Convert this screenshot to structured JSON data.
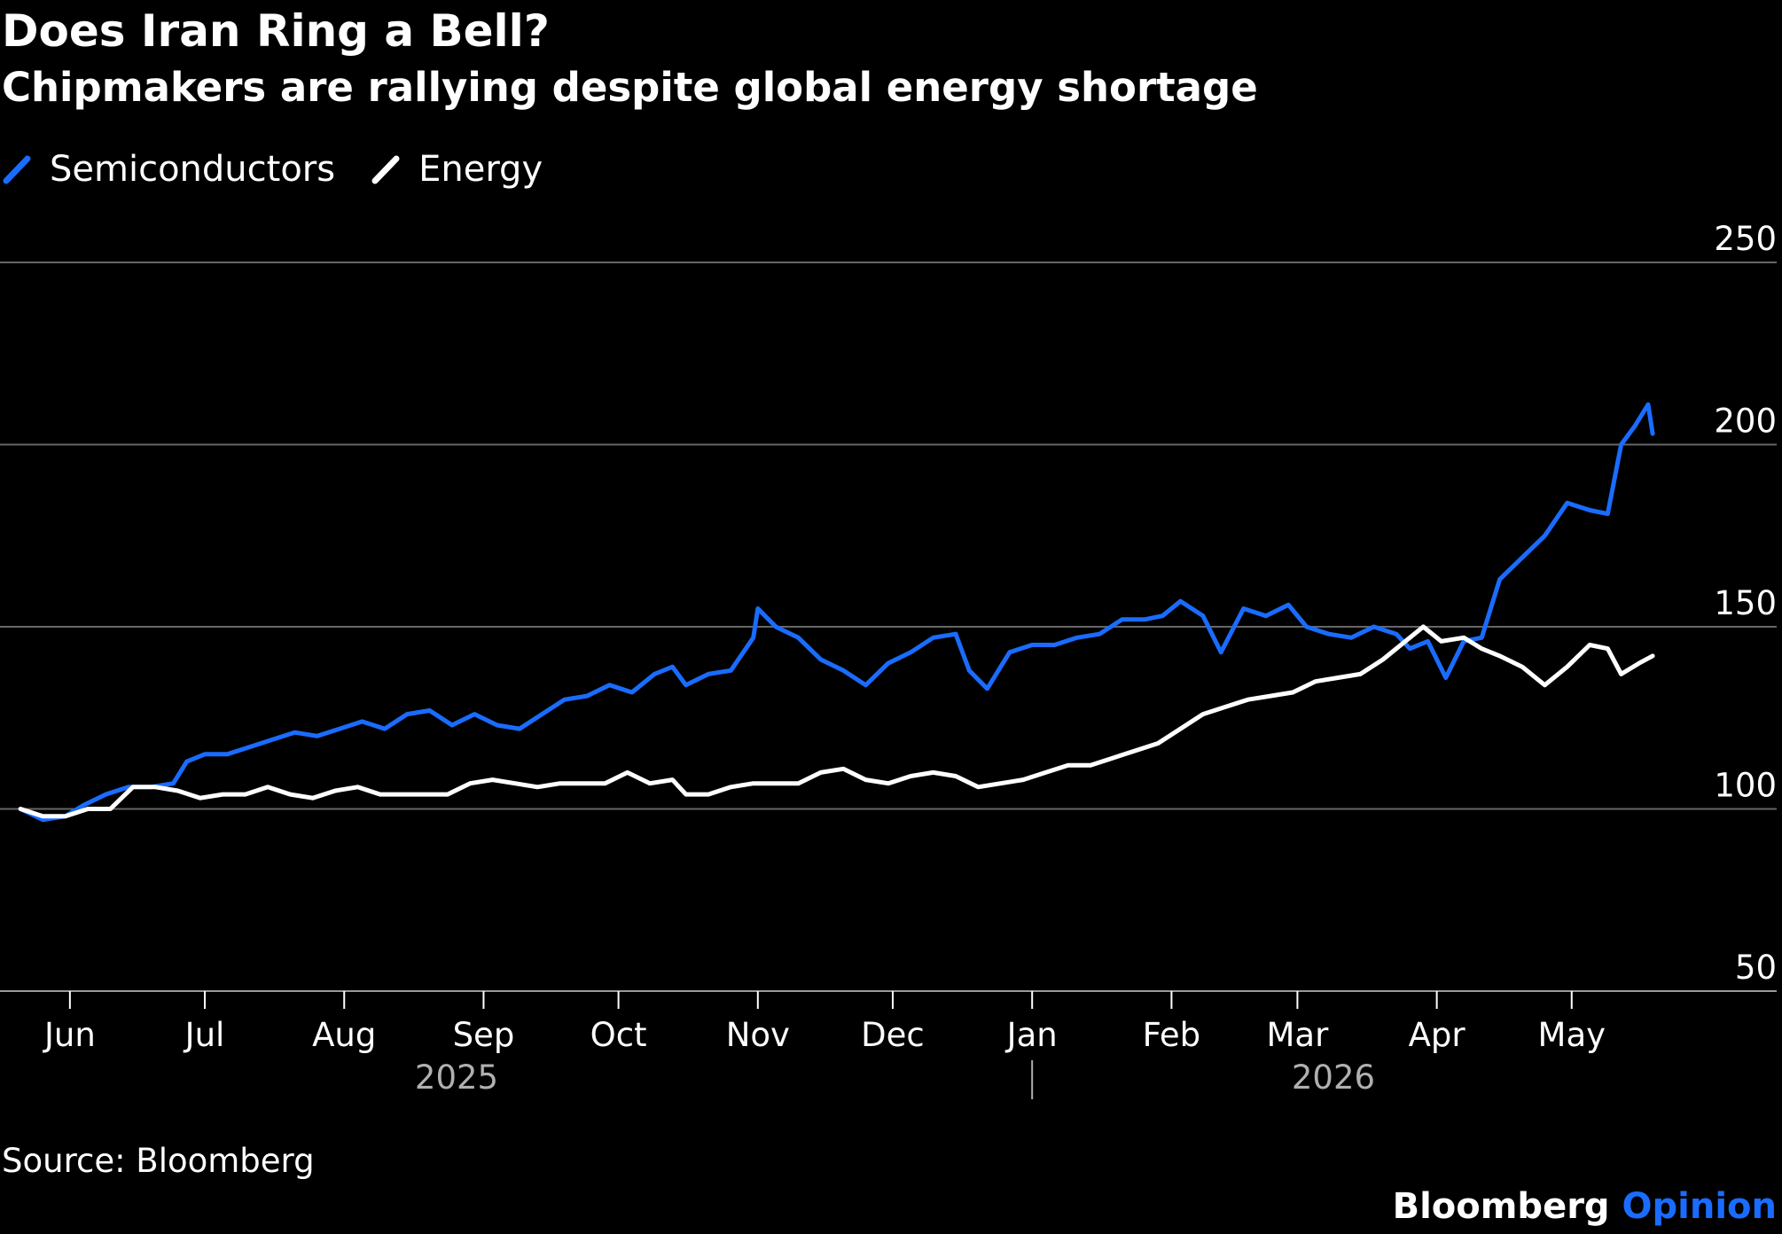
{
  "header": {
    "title": "Does Iran Ring a Bell?",
    "subtitle": "Chipmakers are rallying despite global energy shortage"
  },
  "footer": {
    "source": "Source: Bloomberg",
    "brand_1": "Bloomberg",
    "brand_2": "Opinion"
  },
  "colors": {
    "background": "#000000",
    "semiconductors": "#1a6cff",
    "energy": "#ffffff",
    "grid": "#666666",
    "year_label": "#b0b0b0"
  },
  "chart_data": {
    "type": "line",
    "title": "Does Iran Ring a Bell?",
    "subtitle": "Chipmakers are rallying despite global energy shortage",
    "legend_position": "top-left",
    "grid": true,
    "ylim": [
      50,
      250
    ],
    "yticks": [
      50,
      100,
      150,
      200,
      250
    ],
    "y_axis_side": "right",
    "xlim": [
      "2025-05-20",
      "2026-06-01"
    ],
    "x_ticks": [
      {
        "date": "2025-06-01",
        "label": "Jun"
      },
      {
        "date": "2025-07-01",
        "label": "Jul"
      },
      {
        "date": "2025-08-01",
        "label": "Aug"
      },
      {
        "date": "2025-09-01",
        "label": "Sep"
      },
      {
        "date": "2025-10-01",
        "label": "Oct"
      },
      {
        "date": "2025-11-01",
        "label": "Nov"
      },
      {
        "date": "2025-12-01",
        "label": "Dec"
      },
      {
        "date": "2026-01-01",
        "label": "Jan"
      },
      {
        "date": "2026-02-01",
        "label": "Feb"
      },
      {
        "date": "2026-03-01",
        "label": "Mar"
      },
      {
        "date": "2026-04-01",
        "label": "Apr"
      },
      {
        "date": "2026-05-01",
        "label": "May"
      }
    ],
    "year_labels": [
      {
        "date": "2025-08-26",
        "label": "2025"
      },
      {
        "date": "2026-03-09",
        "label": "2026"
      }
    ],
    "year_separator_date": "2026-01-01",
    "series": [
      {
        "name": "Semiconductors",
        "color": "#1a6cff",
        "points": [
          [
            "2025-05-21",
            100
          ],
          [
            "2025-05-26",
            97
          ],
          [
            "2025-05-31",
            98
          ],
          [
            "2025-06-04",
            101
          ],
          [
            "2025-06-09",
            104
          ],
          [
            "2025-06-14",
            106
          ],
          [
            "2025-06-19",
            106
          ],
          [
            "2025-06-24",
            107
          ],
          [
            "2025-06-27",
            113
          ],
          [
            "2025-07-01",
            115
          ],
          [
            "2025-07-06",
            115
          ],
          [
            "2025-07-11",
            117
          ],
          [
            "2025-07-16",
            119
          ],
          [
            "2025-07-21",
            121
          ],
          [
            "2025-07-26",
            120
          ],
          [
            "2025-07-31",
            122
          ],
          [
            "2025-08-05",
            124
          ],
          [
            "2025-08-10",
            122
          ],
          [
            "2025-08-15",
            126
          ],
          [
            "2025-08-20",
            127
          ],
          [
            "2025-08-25",
            123
          ],
          [
            "2025-08-30",
            126
          ],
          [
            "2025-09-04",
            123
          ],
          [
            "2025-09-09",
            122
          ],
          [
            "2025-09-14",
            126
          ],
          [
            "2025-09-19",
            130
          ],
          [
            "2025-09-24",
            131
          ],
          [
            "2025-09-29",
            134
          ],
          [
            "2025-10-04",
            132
          ],
          [
            "2025-10-09",
            137
          ],
          [
            "2025-10-13",
            139
          ],
          [
            "2025-10-16",
            134
          ],
          [
            "2025-10-21",
            137
          ],
          [
            "2025-10-26",
            138
          ],
          [
            "2025-10-31",
            147
          ],
          [
            "2025-11-01",
            155
          ],
          [
            "2025-11-05",
            150
          ],
          [
            "2025-11-10",
            147
          ],
          [
            "2025-11-15",
            141
          ],
          [
            "2025-11-20",
            138
          ],
          [
            "2025-11-25",
            134
          ],
          [
            "2025-11-30",
            140
          ],
          [
            "2025-12-05",
            143
          ],
          [
            "2025-12-10",
            147
          ],
          [
            "2025-12-15",
            148
          ],
          [
            "2025-12-18",
            138
          ],
          [
            "2025-12-22",
            133
          ],
          [
            "2025-12-27",
            143
          ],
          [
            "2026-01-01",
            145
          ],
          [
            "2026-01-06",
            145
          ],
          [
            "2026-01-11",
            147
          ],
          [
            "2026-01-16",
            148
          ],
          [
            "2026-01-21",
            152
          ],
          [
            "2026-01-26",
            152
          ],
          [
            "2026-01-30",
            153
          ],
          [
            "2026-02-03",
            157
          ],
          [
            "2026-02-08",
            153
          ],
          [
            "2026-02-12",
            143
          ],
          [
            "2026-02-17",
            155
          ],
          [
            "2026-02-22",
            153
          ],
          [
            "2026-02-27",
            156
          ],
          [
            "2026-03-03",
            150
          ],
          [
            "2026-03-08",
            148
          ],
          [
            "2026-03-13",
            147
          ],
          [
            "2026-03-18",
            150
          ],
          [
            "2026-03-23",
            148
          ],
          [
            "2026-03-26",
            144
          ],
          [
            "2026-03-30",
            146
          ],
          [
            "2026-04-03",
            136
          ],
          [
            "2026-04-07",
            146
          ],
          [
            "2026-04-11",
            147
          ],
          [
            "2026-04-15",
            163
          ],
          [
            "2026-04-20",
            169
          ],
          [
            "2026-04-25",
            175
          ],
          [
            "2026-04-30",
            184
          ],
          [
            "2026-05-05",
            182
          ],
          [
            "2026-05-09",
            181
          ],
          [
            "2026-05-12",
            200
          ],
          [
            "2026-05-15",
            205
          ],
          [
            "2026-05-18",
            211
          ],
          [
            "2026-05-19",
            203
          ]
        ]
      },
      {
        "name": "Energy",
        "color": "#ffffff",
        "points": [
          [
            "2025-05-21",
            100
          ],
          [
            "2025-05-26",
            98
          ],
          [
            "2025-05-31",
            98
          ],
          [
            "2025-06-05",
            100
          ],
          [
            "2025-06-10",
            100
          ],
          [
            "2025-06-15",
            106
          ],
          [
            "2025-06-20",
            106
          ],
          [
            "2025-06-25",
            105
          ],
          [
            "2025-06-30",
            103
          ],
          [
            "2025-07-05",
            104
          ],
          [
            "2025-07-10",
            104
          ],
          [
            "2025-07-15",
            106
          ],
          [
            "2025-07-20",
            104
          ],
          [
            "2025-07-25",
            103
          ],
          [
            "2025-07-30",
            105
          ],
          [
            "2025-08-04",
            106
          ],
          [
            "2025-08-09",
            104
          ],
          [
            "2025-08-14",
            104
          ],
          [
            "2025-08-19",
            104
          ],
          [
            "2025-08-24",
            104
          ],
          [
            "2025-08-29",
            107
          ],
          [
            "2025-09-03",
            108
          ],
          [
            "2025-09-08",
            107
          ],
          [
            "2025-09-13",
            106
          ],
          [
            "2025-09-18",
            107
          ],
          [
            "2025-09-23",
            107
          ],
          [
            "2025-09-28",
            107
          ],
          [
            "2025-10-03",
            110
          ],
          [
            "2025-10-08",
            107
          ],
          [
            "2025-10-13",
            108
          ],
          [
            "2025-10-16",
            104
          ],
          [
            "2025-10-21",
            104
          ],
          [
            "2025-10-26",
            106
          ],
          [
            "2025-10-31",
            107
          ],
          [
            "2025-11-05",
            107
          ],
          [
            "2025-11-10",
            107
          ],
          [
            "2025-11-15",
            110
          ],
          [
            "2025-11-20",
            111
          ],
          [
            "2025-11-25",
            108
          ],
          [
            "2025-11-30",
            107
          ],
          [
            "2025-12-05",
            109
          ],
          [
            "2025-12-10",
            110
          ],
          [
            "2025-12-15",
            109
          ],
          [
            "2025-12-20",
            106
          ],
          [
            "2025-12-25",
            107
          ],
          [
            "2025-12-30",
            108
          ],
          [
            "2026-01-04",
            110
          ],
          [
            "2026-01-09",
            112
          ],
          [
            "2026-01-14",
            112
          ],
          [
            "2026-01-19",
            114
          ],
          [
            "2026-01-24",
            116
          ],
          [
            "2026-01-29",
            118
          ],
          [
            "2026-02-03",
            122
          ],
          [
            "2026-02-08",
            126
          ],
          [
            "2026-02-13",
            128
          ],
          [
            "2026-02-18",
            130
          ],
          [
            "2026-02-23",
            131
          ],
          [
            "2026-02-28",
            132
          ],
          [
            "2026-03-05",
            135
          ],
          [
            "2026-03-10",
            136
          ],
          [
            "2026-03-15",
            137
          ],
          [
            "2026-03-20",
            141
          ],
          [
            "2026-03-25",
            146
          ],
          [
            "2026-03-29",
            150
          ],
          [
            "2026-04-02",
            146
          ],
          [
            "2026-04-07",
            147
          ],
          [
            "2026-04-11",
            144
          ],
          [
            "2026-04-15",
            142
          ],
          [
            "2026-04-20",
            139
          ],
          [
            "2026-04-25",
            134
          ],
          [
            "2026-04-30",
            139
          ],
          [
            "2026-05-05",
            145
          ],
          [
            "2026-05-09",
            144
          ],
          [
            "2026-05-12",
            137
          ],
          [
            "2026-05-16",
            140
          ],
          [
            "2026-05-19",
            142
          ]
        ]
      }
    ]
  }
}
